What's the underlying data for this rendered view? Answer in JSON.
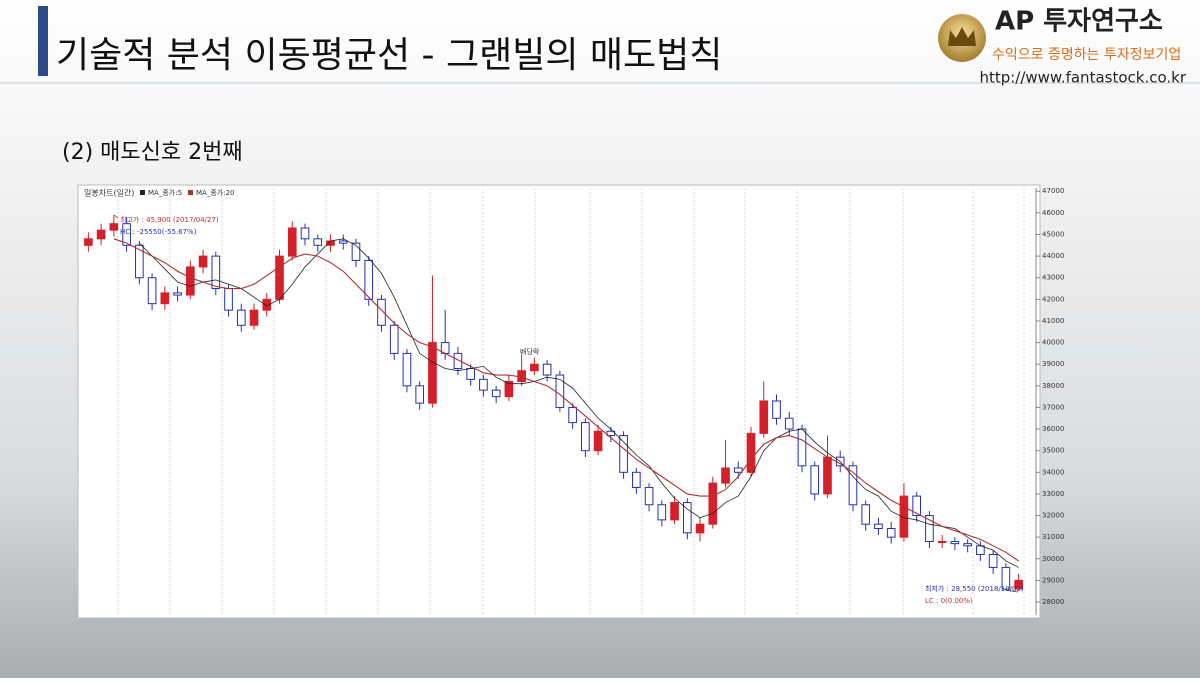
{
  "title": "기술적 분석 이동평균선 - 그랜빌의 매도법칙",
  "subtitle": "(2) 매도신호 2번째",
  "logo": {
    "name": "AP 투자연구소",
    "tagline": "수익으로 증명하는 투자정보기업",
    "url": "http://www.fantastock.co.kr"
  },
  "chart_data": {
    "type": "candlestick",
    "title": "일봉차트(일간)",
    "up_color": "#d4202a",
    "down_color": "#2432b0",
    "ylim": [
      27400,
      47150
    ],
    "yticks": [
      28000,
      29000,
      30000,
      31000,
      32000,
      33000,
      34000,
      35000,
      36000,
      37000,
      38000,
      39000,
      40000,
      41000,
      42000,
      43000,
      44000,
      45000,
      46000,
      47000
    ],
    "open": [
      44500,
      44800,
      45200,
      45500,
      44500,
      43000,
      41800,
      42300,
      42200,
      43500,
      44000,
      42500,
      41500,
      40800,
      41500,
      42000,
      44000,
      45300,
      44800,
      44500,
      44700,
      44600,
      43800,
      42000,
      40800,
      39500,
      38000,
      37200,
      40000,
      39500,
      38800,
      38300,
      37800,
      37500,
      38200,
      38700,
      39000,
      38500,
      37000,
      36300,
      35000,
      35900,
      35700,
      34000,
      33300,
      32500,
      31800,
      32600,
      31200,
      31600,
      33500,
      34200,
      34000,
      35800,
      37300,
      36500,
      36000,
      34300,
      33000,
      34700,
      34300,
      32500,
      31600,
      31400,
      31000,
      32900,
      32000,
      30800,
      30800,
      30700,
      30600,
      30200,
      29600,
      28600
    ],
    "high": [
      45100,
      45500,
      45900,
      45800,
      44700,
      43200,
      42600,
      42600,
      43800,
      44300,
      44200,
      42700,
      41800,
      41800,
      42300,
      44300,
      45600,
      45500,
      45000,
      45000,
      45000,
      44800,
      44000,
      42200,
      41000,
      39700,
      38200,
      43100,
      41500,
      39800,
      39000,
      38500,
      38000,
      38500,
      39500,
      39300,
      39200,
      38700,
      37200,
      36500,
      36200,
      36100,
      35900,
      34200,
      33500,
      32700,
      32900,
      32800,
      31900,
      33800,
      35500,
      34500,
      36100,
      38200,
      37600,
      36800,
      36200,
      34500,
      35700,
      35000,
      34500,
      32700,
      31900,
      31700,
      33500,
      33100,
      32200,
      31100,
      31000,
      30900,
      30800,
      30400,
      29800,
      29300
    ],
    "low": [
      44200,
      44500,
      44900,
      44200,
      42700,
      41500,
      41500,
      41900,
      42000,
      43200,
      42200,
      41200,
      40500,
      40600,
      41200,
      41800,
      43800,
      44500,
      44200,
      44200,
      44300,
      43500,
      41700,
      40500,
      39200,
      37700,
      36900,
      37000,
      39200,
      38500,
      38000,
      37500,
      37200,
      37300,
      38000,
      38500,
      38200,
      36800,
      36000,
      34700,
      34800,
      35400,
      33700,
      33000,
      32200,
      31500,
      31600,
      30900,
      30800,
      31400,
      33300,
      33700,
      33800,
      35600,
      36200,
      35700,
      34000,
      32700,
      32800,
      34000,
      32200,
      31300,
      31100,
      30700,
      30800,
      31700,
      30500,
      30500,
      30400,
      30300,
      29900,
      29300,
      28550,
      28600
    ],
    "close": [
      44800,
      45200,
      45500,
      44500,
      43000,
      41800,
      42300,
      42200,
      43500,
      44000,
      42500,
      41500,
      40800,
      41500,
      42000,
      44000,
      45300,
      44800,
      44500,
      44700,
      44600,
      43800,
      42000,
      40800,
      39500,
      38000,
      37200,
      40000,
      39500,
      38800,
      38300,
      37800,
      37500,
      38200,
      38700,
      39000,
      38500,
      37000,
      36300,
      35000,
      35900,
      35700,
      34000,
      33300,
      32500,
      31800,
      32600,
      31200,
      31600,
      33500,
      34200,
      34000,
      35800,
      37300,
      36500,
      36000,
      34300,
      33000,
      34700,
      34300,
      32500,
      31600,
      31400,
      31000,
      32900,
      32000,
      30800,
      30800,
      30700,
      30600,
      30200,
      29600,
      28600,
      29000
    ],
    "series": [
      {
        "name": "MA_종가:5",
        "color": "#222222",
        "values": [
          null,
          null,
          null,
          null,
          44600,
          44000,
          43400,
          42800,
          42600,
          42800,
          42900,
          42700,
          42500,
          42100,
          41700,
          42000,
          42700,
          43500,
          44100,
          44700,
          44800,
          44500,
          43900,
          43200,
          42100,
          40800,
          39500,
          39100,
          38800,
          38700,
          38800,
          38900,
          38400,
          38100,
          38100,
          38200,
          38400,
          38300,
          37900,
          37200,
          36500,
          36000,
          35400,
          34800,
          34300,
          33500,
          32800,
          32300,
          31900,
          32100,
          32600,
          32900,
          33800,
          35000,
          35600,
          35900,
          36000,
          35400,
          34900,
          34500,
          33800,
          33200,
          32900,
          32200,
          31900,
          31800,
          31600,
          31500,
          31400,
          31000,
          30600,
          30400,
          29900,
          29600
        ]
      },
      {
        "name": "MA_종가:20",
        "color": "#b03030",
        "values": [
          null,
          null,
          44800,
          44600,
          44300,
          44000,
          43700,
          43300,
          43000,
          42800,
          42600,
          42500,
          42500,
          42700,
          43100,
          43500,
          43900,
          44100,
          44000,
          43700,
          43300,
          42700,
          42100,
          41500,
          40900,
          40400,
          40000,
          39800,
          39500,
          39200,
          38900,
          38600,
          38500,
          38500,
          38400,
          38200,
          38000,
          37600,
          37100,
          36600,
          36100,
          35600,
          35100,
          34600,
          34200,
          33800,
          33400,
          33000,
          32900,
          32900,
          33200,
          33800,
          34600,
          35300,
          35600,
          35700,
          35500,
          35100,
          34700,
          34400,
          34000,
          33500,
          33100,
          32700,
          32400,
          32100,
          31800,
          31500,
          31300,
          31100,
          30900,
          30600,
          30300,
          29900
        ]
      }
    ],
    "annotations": [
      "최고가 : 45,900 (2017/04/27)",
      "HC : -25550(-55.67%)",
      "배당락",
      "최저가 : 28,550 (2018/10/02)",
      "LC : 0(0.00%)"
    ]
  }
}
